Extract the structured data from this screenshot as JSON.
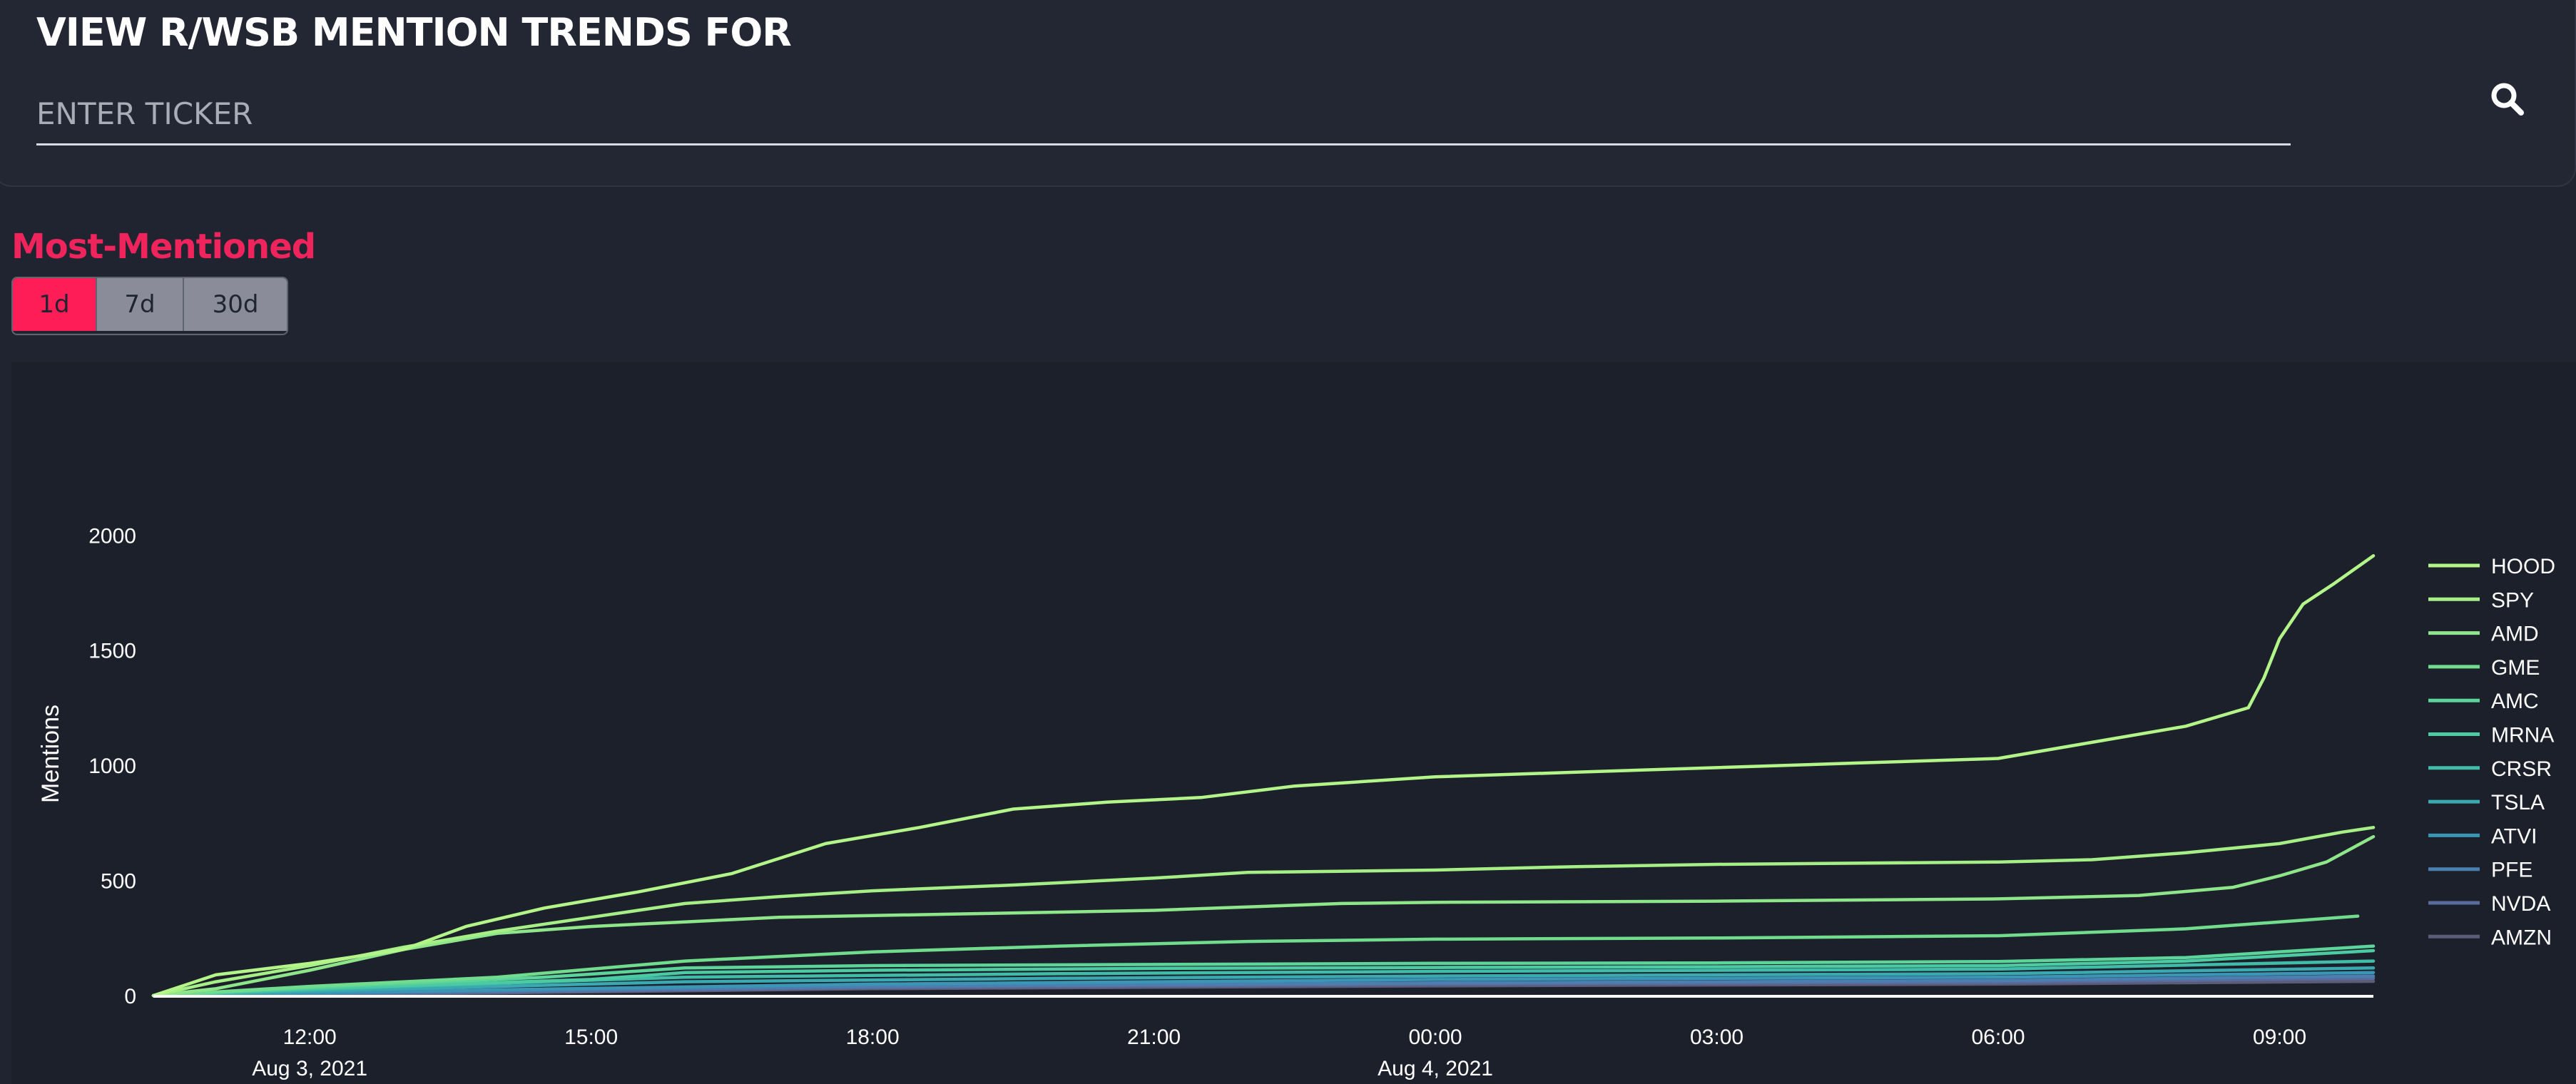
{
  "header": {
    "title": "VIEW R/WSB MENTION TRENDS FOR",
    "ticker_placeholder": "ENTER TICKER",
    "search_icon": "search-icon"
  },
  "section": {
    "title": "Most-Mentioned",
    "ranges": [
      {
        "label": "1d",
        "active": true
      },
      {
        "label": "7d",
        "active": false
      },
      {
        "label": "30d",
        "active": false
      }
    ]
  },
  "colors": {
    "accent": "#ff1d58",
    "background": "#1f2430",
    "inactive_button": "#8a8d99"
  },
  "chart_data": {
    "type": "line",
    "x_unit": "datetime",
    "x_range": [
      "2021-08-03 10:20",
      "2021-08-04 10:00"
    ],
    "ylim": [
      0,
      2100
    ],
    "ylabel": "Mentions",
    "xlabel": "",
    "grid": false,
    "legend_position": "right",
    "y_ticks": [
      0,
      500,
      1000,
      1500,
      2000
    ],
    "x_ticks": [
      {
        "t": "2021-08-03 12:00",
        "label": "12:00",
        "sublabel": "Aug 3, 2021"
      },
      {
        "t": "2021-08-03 15:00",
        "label": "15:00",
        "sublabel": ""
      },
      {
        "t": "2021-08-03 18:00",
        "label": "18:00",
        "sublabel": ""
      },
      {
        "t": "2021-08-03 21:00",
        "label": "21:00",
        "sublabel": ""
      },
      {
        "t": "2021-08-04 00:00",
        "label": "00:00",
        "sublabel": "Aug 4, 2021"
      },
      {
        "t": "2021-08-04 03:00",
        "label": "03:00",
        "sublabel": ""
      },
      {
        "t": "2021-08-04 06:00",
        "label": "06:00",
        "sublabel": ""
      },
      {
        "t": "2021-08-04 09:00",
        "label": "09:00",
        "sublabel": ""
      }
    ],
    "series": [
      {
        "name": "HOOD",
        "color": "#b4f58a",
        "points": [
          [
            "2021-08-03 10:20",
            0
          ],
          [
            "2021-08-03 11:00",
            90
          ],
          [
            "2021-08-03 12:00",
            140
          ],
          [
            "2021-08-03 13:00",
            200
          ],
          [
            "2021-08-03 13:40",
            300
          ],
          [
            "2021-08-03 14:30",
            380
          ],
          [
            "2021-08-03 15:30",
            450
          ],
          [
            "2021-08-03 16:30",
            530
          ],
          [
            "2021-08-03 17:30",
            660
          ],
          [
            "2021-08-03 18:30",
            730
          ],
          [
            "2021-08-03 19:30",
            810
          ],
          [
            "2021-08-03 20:30",
            840
          ],
          [
            "2021-08-03 21:30",
            860
          ],
          [
            "2021-08-03 22:30",
            910
          ],
          [
            "2021-08-04 00:00",
            950
          ],
          [
            "2021-08-04 01:30",
            970
          ],
          [
            "2021-08-04 03:00",
            990
          ],
          [
            "2021-08-04 04:30",
            1010
          ],
          [
            "2021-08-04 06:00",
            1030
          ],
          [
            "2021-08-04 07:00",
            1100
          ],
          [
            "2021-08-04 08:00",
            1170
          ],
          [
            "2021-08-04 08:40",
            1250
          ],
          [
            "2021-08-04 08:50",
            1380
          ],
          [
            "2021-08-04 09:00",
            1550
          ],
          [
            "2021-08-04 09:15",
            1700
          ],
          [
            "2021-08-04 09:35",
            1790
          ],
          [
            "2021-08-04 10:00",
            1910
          ]
        ]
      },
      {
        "name": "SPY",
        "color": "#a6ef86",
        "points": [
          [
            "2021-08-03 10:20",
            0
          ],
          [
            "2021-08-03 11:00",
            60
          ],
          [
            "2021-08-03 12:00",
            130
          ],
          [
            "2021-08-03 13:00",
            210
          ],
          [
            "2021-08-03 14:00",
            280
          ],
          [
            "2021-08-03 15:00",
            340
          ],
          [
            "2021-08-03 16:00",
            400
          ],
          [
            "2021-08-03 17:00",
            430
          ],
          [
            "2021-08-03 18:00",
            455
          ],
          [
            "2021-08-03 19:30",
            480
          ],
          [
            "2021-08-03 21:00",
            510
          ],
          [
            "2021-08-03 22:00",
            535
          ],
          [
            "2021-08-04 00:00",
            545
          ],
          [
            "2021-08-04 01:30",
            560
          ],
          [
            "2021-08-04 03:00",
            570
          ],
          [
            "2021-08-04 06:00",
            580
          ],
          [
            "2021-08-04 07:00",
            590
          ],
          [
            "2021-08-04 08:00",
            620
          ],
          [
            "2021-08-04 09:00",
            660
          ],
          [
            "2021-08-04 09:40",
            710
          ],
          [
            "2021-08-04 10:00",
            730
          ]
        ]
      },
      {
        "name": "AMD",
        "color": "#8ee58a",
        "points": [
          [
            "2021-08-03 10:20",
            0
          ],
          [
            "2021-08-03 11:00",
            30
          ],
          [
            "2021-08-03 12:00",
            110
          ],
          [
            "2021-08-03 13:00",
            200
          ],
          [
            "2021-08-03 14:00",
            270
          ],
          [
            "2021-08-03 15:00",
            300
          ],
          [
            "2021-08-03 16:00",
            320
          ],
          [
            "2021-08-03 17:00",
            340
          ],
          [
            "2021-08-03 19:00",
            355
          ],
          [
            "2021-08-03 21:00",
            370
          ],
          [
            "2021-08-03 23:00",
            400
          ],
          [
            "2021-08-04 00:00",
            405
          ],
          [
            "2021-08-04 03:00",
            410
          ],
          [
            "2021-08-04 06:00",
            420
          ],
          [
            "2021-08-04 07:30",
            435
          ],
          [
            "2021-08-04 08:30",
            470
          ],
          [
            "2021-08-04 09:00",
            520
          ],
          [
            "2021-08-04 09:30",
            580
          ],
          [
            "2021-08-04 10:00",
            690
          ]
        ]
      },
      {
        "name": "GME",
        "color": "#72dc8e",
        "points": [
          [
            "2021-08-03 10:20",
            0
          ],
          [
            "2021-08-03 12:00",
            40
          ],
          [
            "2021-08-03 14:00",
            80
          ],
          [
            "2021-08-03 16:00",
            150
          ],
          [
            "2021-08-03 18:00",
            190
          ],
          [
            "2021-08-03 20:00",
            215
          ],
          [
            "2021-08-03 22:00",
            235
          ],
          [
            "2021-08-04 00:00",
            245
          ],
          [
            "2021-08-04 03:00",
            250
          ],
          [
            "2021-08-04 06:00",
            260
          ],
          [
            "2021-08-04 08:00",
            290
          ],
          [
            "2021-08-04 09:00",
            320
          ],
          [
            "2021-08-04 09:50",
            345
          ]
        ]
      },
      {
        "name": "AMC",
        "color": "#5cd49a",
        "points": [
          [
            "2021-08-03 10:20",
            0
          ],
          [
            "2021-08-03 12:00",
            35
          ],
          [
            "2021-08-03 14:30",
            80
          ],
          [
            "2021-08-03 16:00",
            120
          ],
          [
            "2021-08-03 18:00",
            130
          ],
          [
            "2021-08-03 21:00",
            135
          ],
          [
            "2021-08-04 00:00",
            140
          ],
          [
            "2021-08-04 03:00",
            142
          ],
          [
            "2021-08-04 06:00",
            148
          ],
          [
            "2021-08-04 08:00",
            165
          ],
          [
            "2021-08-04 10:00",
            215
          ]
        ]
      },
      {
        "name": "MRNA",
        "color": "#4ccaa2",
        "points": [
          [
            "2021-08-03 10:20",
            0
          ],
          [
            "2021-08-03 12:00",
            30
          ],
          [
            "2021-08-03 15:00",
            70
          ],
          [
            "2021-08-03 16:00",
            100
          ],
          [
            "2021-08-03 18:00",
            110
          ],
          [
            "2021-08-03 21:00",
            118
          ],
          [
            "2021-08-04 00:00",
            122
          ],
          [
            "2021-08-04 03:00",
            125
          ],
          [
            "2021-08-04 06:00",
            130
          ],
          [
            "2021-08-04 08:00",
            150
          ],
          [
            "2021-08-04 10:00",
            195
          ]
        ]
      },
      {
        "name": "CRSR",
        "color": "#40bca8",
        "points": [
          [
            "2021-08-03 10:20",
            0
          ],
          [
            "2021-08-03 13:00",
            40
          ],
          [
            "2021-08-03 16:00",
            80
          ],
          [
            "2021-08-03 20:00",
            95
          ],
          [
            "2021-08-04 00:00",
            105
          ],
          [
            "2021-08-04 06:00",
            115
          ],
          [
            "2021-08-04 10:00",
            150
          ]
        ]
      },
      {
        "name": "TSLA",
        "color": "#3aaab0",
        "points": [
          [
            "2021-08-03 10:20",
            0
          ],
          [
            "2021-08-03 13:00",
            30
          ],
          [
            "2021-08-03 16:00",
            60
          ],
          [
            "2021-08-03 20:00",
            75
          ],
          [
            "2021-08-04 00:00",
            85
          ],
          [
            "2021-08-04 06:00",
            95
          ],
          [
            "2021-08-04 10:00",
            120
          ]
        ]
      },
      {
        "name": "ATVI",
        "color": "#3a96b4",
        "points": [
          [
            "2021-08-03 10:20",
            0
          ],
          [
            "2021-08-03 14:00",
            25
          ],
          [
            "2021-08-03 18:00",
            50
          ],
          [
            "2021-08-04 00:00",
            70
          ],
          [
            "2021-08-04 06:00",
            80
          ],
          [
            "2021-08-04 10:00",
            100
          ]
        ]
      },
      {
        "name": "PFE",
        "color": "#4a7fb0",
        "points": [
          [
            "2021-08-03 10:20",
            0
          ],
          [
            "2021-08-03 14:00",
            20
          ],
          [
            "2021-08-03 18:00",
            40
          ],
          [
            "2021-08-04 00:00",
            55
          ],
          [
            "2021-08-04 06:00",
            65
          ],
          [
            "2021-08-04 10:00",
            85
          ]
        ]
      },
      {
        "name": "NVDA",
        "color": "#5a6c9e",
        "points": [
          [
            "2021-08-03 10:20",
            0
          ],
          [
            "2021-08-03 14:00",
            15
          ],
          [
            "2021-08-03 18:00",
            35
          ],
          [
            "2021-08-04 00:00",
            50
          ],
          [
            "2021-08-04 06:00",
            58
          ],
          [
            "2021-08-04 10:00",
            75
          ]
        ]
      },
      {
        "name": "AMZN",
        "color": "#5c5c78",
        "points": [
          [
            "2021-08-03 10:20",
            0
          ],
          [
            "2021-08-03 14:00",
            12
          ],
          [
            "2021-08-03 18:00",
            30
          ],
          [
            "2021-08-04 00:00",
            42
          ],
          [
            "2021-08-04 06:00",
            50
          ],
          [
            "2021-08-04 10:00",
            62
          ]
        ]
      }
    ]
  }
}
